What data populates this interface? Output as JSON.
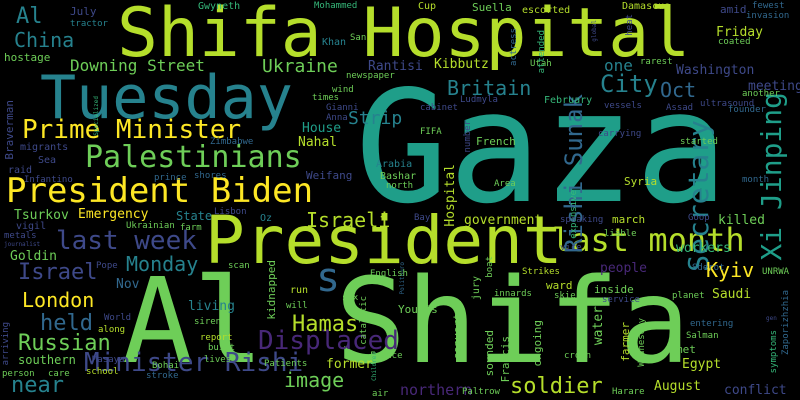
{
  "words": {
    "gaza": "Gaza",
    "al_shifa": "Al Shifa",
    "shifa_hospital": "Shifa Hospital",
    "president": "President",
    "tuesday": "Tuesday",
    "president_biden": "President Biden",
    "palestinians": "Palestinians",
    "prime_minister": "Prime Minister",
    "last_month": "last month",
    "last_week": "last week",
    "displaced": "Displaced",
    "minister_rishi": "Minister Rishi",
    "xi_jinping": "Xi Jinping",
    "rishi_sunak": "Rishi Sunak",
    "secretary": "Secretary",
    "israeli": "Israeli",
    "hamas": "Hamas",
    "israel": "Israel",
    "london": "London",
    "monday": "Monday",
    "russian": "Russian",
    "held": "held",
    "near": "near",
    "image": "image",
    "soldier": "soldier",
    "britain": "Britain",
    "city": "City",
    "oct": "Oct",
    "ukraine": "Ukraine",
    "strip": "Strip",
    "downing_street": "Downing Street",
    "china": "China",
    "al": "Al",
    "kyiv": "Kyiv",
    "s": "s",
    "one": "one",
    "washington": "Washington",
    "friday": "Friday",
    "meeting": "meeting",
    "emergency": "Emergency",
    "tsurkov": "Tsurkov",
    "state": "State",
    "government": "government",
    "killed": "killed",
    "workers": "workers",
    "people": "people",
    "saudi": "Saudi",
    "egypt": "Egypt",
    "august": "August",
    "conflict": "conflict",
    "northern": "northern",
    "former": "former",
    "southern": "southern",
    "goldin": "Goldin",
    "house": "House",
    "nahal": "Nahal",
    "kibbutz": "Kibbutz",
    "rantisi": "Rantisi",
    "july": "July",
    "gwyneth": "Gwyneth",
    "mohammed": "Mohammed",
    "cup": "Cup",
    "suella": "Suella",
    "escorted": "escorted",
    "damascus": "Damascus",
    "fewest": "fewest",
    "invasion": "invasion",
    "amid": "amid",
    "hostage": "hostage",
    "tractor": "tractor",
    "khan": "Khan",
    "san": "San",
    "utah": "Utah",
    "rarest": "rarest",
    "coated": "coated",
    "newspaper": "newspaper",
    "wind": "wind",
    "times": "times",
    "attended": "attended",
    "february": "February",
    "another": "another",
    "ultrasound": "ultrasound",
    "assad": "Assad",
    "vessels": "vessels",
    "ludmyla": "Ludmyla",
    "cabinet": "cabinet",
    "gianni": "Gianni",
    "anna": "Anna",
    "braverman": "Braverman",
    "migrants": "migrants",
    "sea": "Sea",
    "raid": "raid",
    "infantino": "Infantino",
    "prince": "prince",
    "shores": "shores",
    "weifang": "Weifang",
    "zimbabwe": "Zimbabwe",
    "arabia": "Arabia",
    "bashar": "Bashar",
    "north": "north",
    "french": "French",
    "area": "Area",
    "syria": "Syria",
    "march": "march",
    "started": "started",
    "carrying": "carrying",
    "month": "month",
    "founder": "founder",
    "fifa": "FIFA",
    "hospital": "Hospital",
    "bay": "Bay",
    "oz": "Oz",
    "lisbon": "Lisbon",
    "farm": "farm",
    "ukrainian": "Ukrainian",
    "vigil": "vigil",
    "metals": "metals",
    "journalist": "journalist",
    "pope": "Pope",
    "nov": "Nov",
    "scan": "scan",
    "kidnapped": "kidnapped",
    "run": "run",
    "six": "six",
    "will": "will",
    "english": "English",
    "catalytic": "catalytic",
    "strikes": "Strikes",
    "skier": "skier",
    "innards": "innards",
    "inside": "inside",
    "service": "service",
    "planet": "planet",
    "sderot": "Sderot",
    "unrwa": "UNRWA",
    "goop": "Goop",
    "liable": "liable",
    "speaking": "speaking",
    "expensive": "expensive",
    "living": "living",
    "sirens": "sirens",
    "report": "report",
    "built": "built",
    "lives": "lives",
    "bohai": "Bohai",
    "patients": "Patients",
    "stroke": "stroke",
    "school": "school",
    "masaya": "Masaya",
    "care": "care",
    "person": "person",
    "arriving": "arriving",
    "world": "World",
    "along": "along",
    "younis": "Younis",
    "france": "France",
    "children": "Children",
    "air": "air",
    "paltrow": "Paltrow",
    "harare": "Harare",
    "crown": "crown",
    "met": "met",
    "salman": "Salman",
    "entering": "entering",
    "symptoms": "symptoms",
    "zaporizhzhia": "Zaporizhzhia",
    "ward": "ward",
    "ongoing": "ongoing",
    "sounded": "sounded",
    "francis": "Francis",
    "converted": "converted",
    "jury": "jury",
    "boat": "boat",
    "water": "water",
    "farmer": "farmer",
    "wednesday": "Wednesday",
    "politburo": "Politburo",
    "specialized": "Specialized",
    "actress": "actress",
    "number": "number",
    "heat": "heat",
    "global": "global",
    "vice": "vice",
    "gen": "gen"
  },
  "colors": {
    "background": "#000000",
    "yellow": "#fde725",
    "lime": "#b5de2b",
    "green": "#6ece58",
    "mint": "#35b779",
    "teal": "#1f9e89",
    "cyan": "#26828e",
    "blue": "#31688e",
    "indigo": "#3e4989",
    "purple": "#482878",
    "deep": "#440154"
  }
}
